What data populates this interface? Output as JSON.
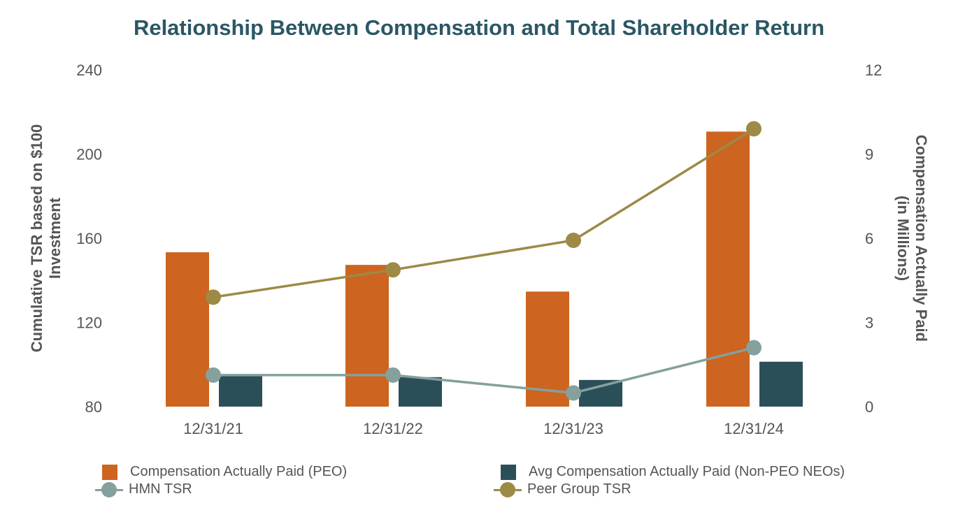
{
  "title": "Relationship Between Compensation and Total Shareholder Return",
  "colors": {
    "peo": "#cd6420",
    "neo": "#2b4f59",
    "hmn": "#85a09d",
    "peer": "#9c8a45",
    "title": "#2b5764"
  },
  "chart_data": {
    "type": "bar",
    "title": "Relationship Between Compensation and Total Shareholder Return",
    "categories": [
      "12/31/21",
      "12/31/22",
      "12/31/23",
      "12/31/24"
    ],
    "y_left": {
      "label": "Cumulative TSR based on $100 Investment",
      "label_lines": [
        "Cumulative TSR based on $100",
        "Investment"
      ],
      "ticks": [
        "80",
        "120",
        "160",
        "200",
        "240"
      ],
      "range": [
        80,
        240
      ]
    },
    "y_right": {
      "label": "Compensation Actually Paid (in Millions)",
      "label_lines": [
        "Compensation Actually Paid",
        "(in Millions)"
      ],
      "ticks": [
        "0",
        "3",
        "6",
        "9",
        "12"
      ],
      "range": [
        0,
        12
      ]
    },
    "series": [
      {
        "name": "Compensation Actually Paid (PEO)",
        "type": "bar",
        "axis": "right",
        "values": [
          5.5,
          5.05,
          4.1,
          9.8
        ]
      },
      {
        "name": "Avg Compensation Actually Paid (Non-PEO NEOs)",
        "type": "bar",
        "axis": "right",
        "values": [
          1.15,
          1.05,
          0.95,
          1.6
        ]
      },
      {
        "name": "HMN TSR",
        "type": "line",
        "axis": "left",
        "values": [
          95,
          95,
          86.5,
          108
        ]
      },
      {
        "name": "Peer Group TSR",
        "type": "line",
        "axis": "left",
        "values": [
          132,
          145,
          159,
          212
        ]
      }
    ],
    "legend_position": "bottom",
    "grid": false
  }
}
